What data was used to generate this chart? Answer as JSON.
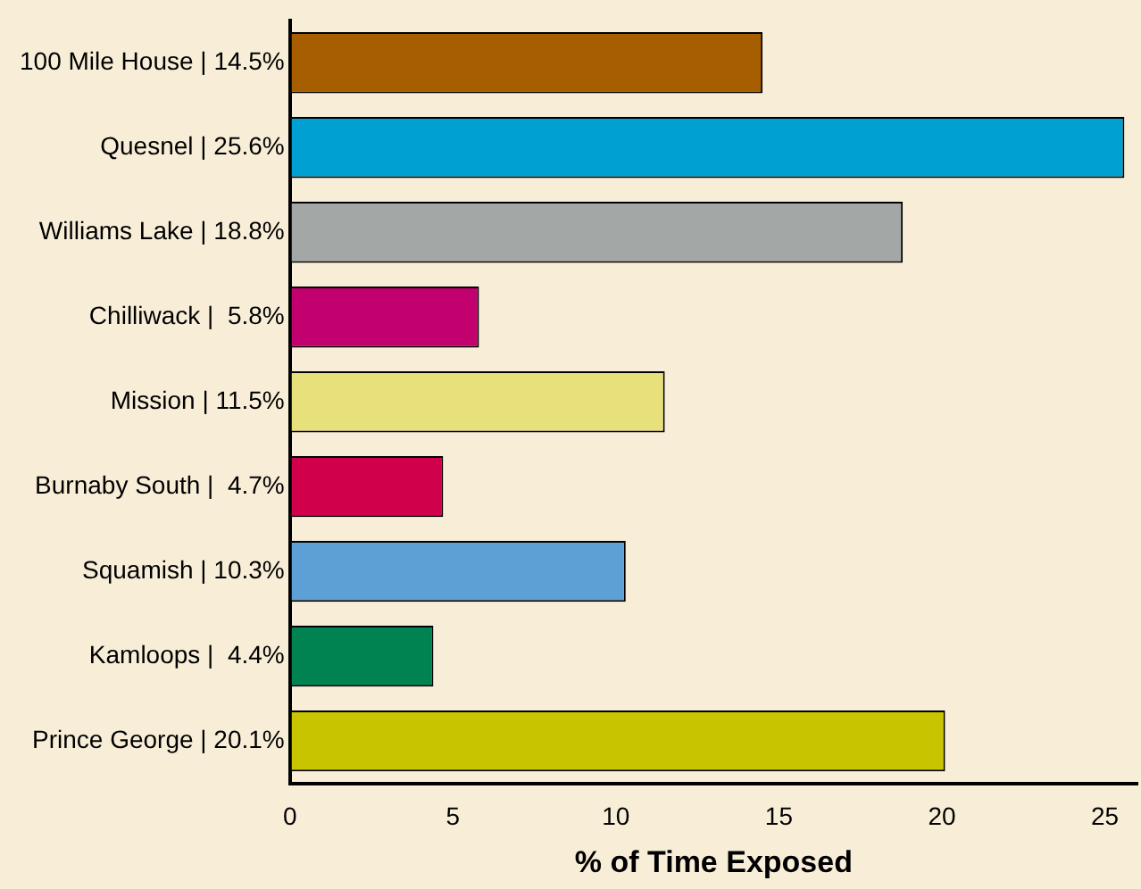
{
  "chart_data": {
    "type": "bar",
    "orientation": "horizontal",
    "xlabel": "% of Time Exposed",
    "categories": [
      "100 Mile House | 14.5%",
      "Quesnel | 25.6%",
      "Williams Lake | 18.8%",
      "Chilliwack |  5.8%",
      "Mission | 11.5%",
      "Burnaby South |  4.7%",
      "Squamish | 10.3%",
      "Kamloops |  4.4%",
      "Prince George | 20.1%"
    ],
    "values": [
      14.5,
      25.6,
      18.8,
      5.8,
      11.5,
      4.7,
      10.3,
      4.4,
      20.1
    ],
    "colors": [
      "#a65e00",
      "#00a0d2",
      "#a3a8a6",
      "#c2006e",
      "#e8e07a",
      "#d0004a",
      "#5ca0d6",
      "#008350",
      "#c8c400"
    ],
    "xlim": [
      0,
      26
    ],
    "xticks": [
      0,
      5,
      10,
      15,
      20,
      25
    ],
    "grid": false,
    "legend": false
  }
}
